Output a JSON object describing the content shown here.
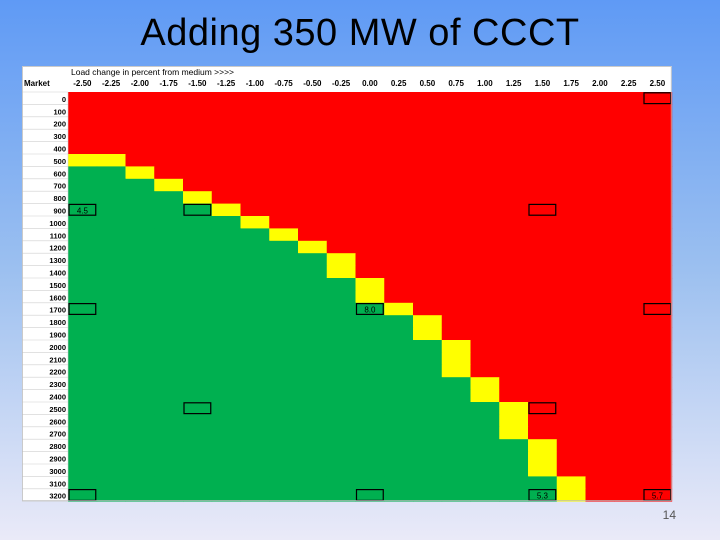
{
  "slide": {
    "title": "Adding 350 MW of CCCT",
    "page_number": "14"
  },
  "table": {
    "row_header_label": "Market",
    "column_caption": "Load change in percent from medium >>>>",
    "columns": [
      "-2.50",
      "-2.25",
      "-2.00",
      "-1.75",
      "-1.50",
      "-1.25",
      "-1.00",
      "-0.75",
      "-0.50",
      "-0.25",
      "0.00",
      "0.25",
      "0.50",
      "0.75",
      "1.00",
      "1.25",
      "1.50",
      "1.75",
      "2.00",
      "2.25",
      "2.50"
    ],
    "rows": [
      "0",
      "100",
      "200",
      "300",
      "400",
      "500",
      "600",
      "700",
      "800",
      "900",
      "1000",
      "1100",
      "1200",
      "1300",
      "1400",
      "1500",
      "1600",
      "1700",
      "1800",
      "1900",
      "2000",
      "2100",
      "2200",
      "2300",
      "2400",
      "2500",
      "2600",
      "2700",
      "2800",
      "2900",
      "3000",
      "3100",
      "3200"
    ],
    "yellow_cells": [
      [
        5,
        0
      ],
      [
        5,
        1
      ],
      [
        6,
        2
      ],
      [
        7,
        3
      ],
      [
        8,
        4
      ],
      [
        9,
        5
      ],
      [
        10,
        6
      ],
      [
        11,
        7
      ],
      [
        12,
        8
      ],
      [
        13,
        9
      ],
      [
        14,
        9
      ],
      [
        15,
        10
      ],
      [
        16,
        10
      ],
      [
        17,
        11
      ],
      [
        18,
        12
      ],
      [
        19,
        12
      ],
      [
        20,
        13
      ],
      [
        21,
        13
      ],
      [
        22,
        13
      ],
      [
        23,
        14
      ],
      [
        24,
        14
      ],
      [
        25,
        15
      ],
      [
        26,
        15
      ],
      [
        27,
        15
      ],
      [
        28,
        16
      ],
      [
        29,
        16
      ],
      [
        30,
        16
      ],
      [
        31,
        17
      ],
      [
        32,
        17
      ]
    ],
    "colors": {
      "red": "#ff0000",
      "yellow": "#ffff00",
      "green": "#00b050",
      "border": "#000000"
    },
    "highlighted_cells": [
      {
        "row": 0,
        "col": 20,
        "label": ""
      },
      {
        "row": 9,
        "col": 0,
        "label": "4.5"
      },
      {
        "row": 9,
        "col": 4,
        "label": ""
      },
      {
        "row": 9,
        "col": 16,
        "label": ""
      },
      {
        "row": 17,
        "col": 0,
        "label": ""
      },
      {
        "row": 17,
        "col": 10,
        "label": "8.0"
      },
      {
        "row": 17,
        "col": 20,
        "label": ""
      },
      {
        "row": 25,
        "col": 4,
        "label": ""
      },
      {
        "row": 25,
        "col": 16,
        "label": ""
      },
      {
        "row": 32,
        "col": 0,
        "label": ""
      },
      {
        "row": 32,
        "col": 10,
        "label": ""
      },
      {
        "row": 32,
        "col": 16,
        "label": "5.3"
      },
      {
        "row": 32,
        "col": 20,
        "label": "5.7"
      }
    ]
  }
}
